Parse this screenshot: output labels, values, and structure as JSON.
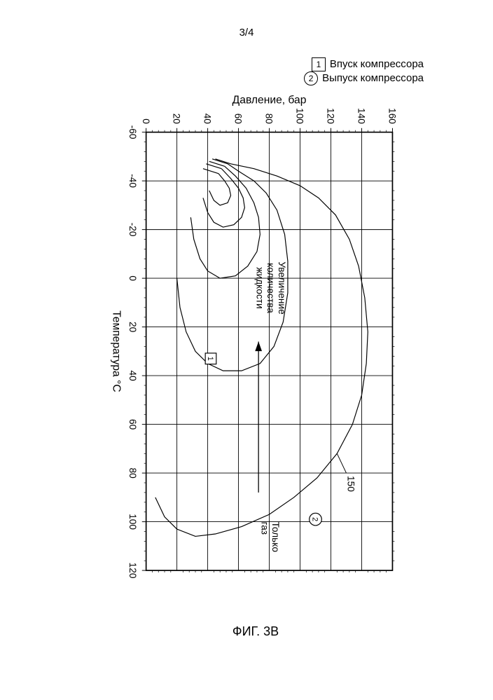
{
  "page_number_label": "3/4",
  "figure_caption": "ФИГ. 3В",
  "legend": {
    "item1": {
      "marker": "1",
      "label": "Впуск компрессора"
    },
    "item2": {
      "marker": "2",
      "label": "Выпуск компрессора"
    }
  },
  "chart": {
    "type": "line",
    "xlabel": "Температура °C",
    "ylabel": "Давление, бар",
    "xlim": [
      -60,
      120
    ],
    "ylim": [
      0,
      160
    ],
    "xtick_values": [
      -60,
      -40,
      -20,
      0,
      20,
      40,
      60,
      80,
      100,
      120
    ],
    "ytick_values": [
      0,
      20,
      40,
      60,
      80,
      100,
      120,
      140,
      160
    ],
    "background_color": "#ffffff",
    "grid_color": "#000000",
    "axis_color": "#000000",
    "line_color": "#000000",
    "text_color": "#000000",
    "tick_fontsize": 14,
    "label_fontsize": 16,
    "line_width": 1.2,
    "grid_line_width": 0.9,
    "annotations": {
      "arrow_label_lines": [
        "Увеличение",
        "количества",
        "жидкости"
      ],
      "gas_only_lines": [
        "Только",
        "газ"
      ],
      "curve_label_150": "150",
      "marker1_inside": "1",
      "marker2_inside": "2"
    },
    "markers_in_plot": {
      "marker1": {
        "x": 33,
        "y": 42,
        "shape": "square"
      },
      "marker2": {
        "x": 99,
        "y": 110,
        "shape": "circle"
      }
    },
    "curves": {
      "outer_150": [
        [
          -47,
          55
        ],
        [
          -45,
          70
        ],
        [
          -42,
          85
        ],
        [
          -38,
          100
        ],
        [
          -33,
          112
        ],
        [
          -26,
          123
        ],
        [
          -16,
          132
        ],
        [
          -5,
          138
        ],
        [
          8,
          142
        ],
        [
          22,
          144
        ],
        [
          35,
          143
        ],
        [
          48,
          140
        ],
        [
          60,
          134
        ],
        [
          72,
          124
        ],
        [
          82,
          111
        ],
        [
          90,
          96
        ],
        [
          97,
          80
        ],
        [
          102,
          62
        ],
        [
          105,
          45
        ],
        [
          106,
          32
        ],
        [
          103,
          20
        ],
        [
          98,
          12
        ],
        [
          90,
          6
        ]
      ],
      "inlet_1": [
        [
          -47,
          53
        ],
        [
          -44,
          60
        ],
        [
          -40,
          70
        ],
        [
          -35,
          78
        ],
        [
          -28,
          85
        ],
        [
          -18,
          90
        ],
        [
          -7,
          92
        ],
        [
          6,
          92
        ],
        [
          18,
          89
        ],
        [
          28,
          83
        ],
        [
          35,
          74
        ],
        [
          38,
          62
        ],
        [
          38,
          50
        ],
        [
          35,
          40
        ],
        [
          30,
          32
        ],
        [
          22,
          26
        ],
        [
          12,
          22
        ],
        [
          0,
          20
        ]
      ],
      "inner2": [
        [
          -46,
          51
        ],
        [
          -42,
          58
        ],
        [
          -37,
          65
        ],
        [
          -31,
          70
        ],
        [
          -25,
          73
        ],
        [
          -18,
          74
        ],
        [
          -11,
          72
        ],
        [
          -5,
          66
        ],
        [
          -1,
          58
        ],
        [
          0,
          48
        ],
        [
          -3,
          40
        ],
        [
          -8,
          35
        ],
        [
          -16,
          31
        ],
        [
          -25,
          29
        ]
      ],
      "inner3": [
        [
          -45,
          49
        ],
        [
          -41,
          55
        ],
        [
          -37,
          60
        ],
        [
          -33,
          63
        ],
        [
          -29,
          64
        ],
        [
          -25,
          62
        ],
        [
          -22,
          57
        ],
        [
          -21,
          50
        ],
        [
          -23,
          44
        ],
        [
          -27,
          40
        ],
        [
          -33,
          37
        ]
      ],
      "inner4": [
        [
          -43,
          47
        ],
        [
          -40,
          51
        ],
        [
          -37,
          54
        ],
        [
          -34,
          55
        ],
        [
          -31,
          53
        ],
        [
          -30,
          48
        ],
        [
          -32,
          44
        ],
        [
          -36,
          41
        ]
      ],
      "tails": [
        [
          [
            -47,
            55
          ],
          [
            -49,
            45
          ]
        ],
        [
          [
            -47,
            53
          ],
          [
            -49,
            43
          ]
        ],
        [
          [
            -46,
            51
          ],
          [
            -48,
            41
          ]
        ],
        [
          [
            -45,
            49
          ],
          [
            -47,
            39
          ]
        ],
        [
          [
            -43,
            47
          ],
          [
            -45,
            37
          ]
        ]
      ]
    },
    "arrow": {
      "from": [
        88,
        73
      ],
      "to": [
        26,
        73
      ]
    }
  }
}
